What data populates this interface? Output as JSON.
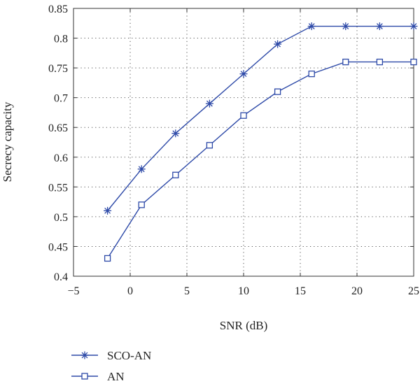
{
  "chart_data": {
    "type": "line",
    "title": "",
    "xlabel": "SNR (dB)",
    "ylabel": "Secrecy capacity",
    "xlim": [
      -5,
      25
    ],
    "ylim": [
      0.4,
      0.85
    ],
    "xticks": [
      -5,
      0,
      5,
      10,
      15,
      20,
      25
    ],
    "xtick_labels": [
      "−5",
      "0",
      "5",
      "10",
      "15",
      "20",
      "25"
    ],
    "yticks": [
      0.4,
      0.45,
      0.5,
      0.55,
      0.6,
      0.65,
      0.7,
      0.75,
      0.8,
      0.85
    ],
    "ytick_labels": [
      "0.4",
      "0.45",
      "0.5",
      "0.55",
      "0.6",
      "0.65",
      "0.7",
      "0.75",
      "0.8",
      "0.85"
    ],
    "grid": true,
    "legend_position": "bottom-left, below plot",
    "x": [
      -2,
      1,
      4,
      7,
      10,
      13,
      16,
      19,
      22,
      25
    ],
    "series": [
      {
        "name": "SCO-AN",
        "marker": "asterisk",
        "color": "#2E4AA8",
        "values": [
          0.51,
          0.58,
          0.64,
          0.69,
          0.74,
          0.79,
          0.82,
          0.82,
          0.82,
          0.82
        ]
      },
      {
        "name": "AN",
        "marker": "square",
        "color": "#2E4AA8",
        "values": [
          0.43,
          0.52,
          0.57,
          0.62,
          0.67,
          0.71,
          0.74,
          0.76,
          0.76,
          0.76
        ]
      }
    ]
  }
}
